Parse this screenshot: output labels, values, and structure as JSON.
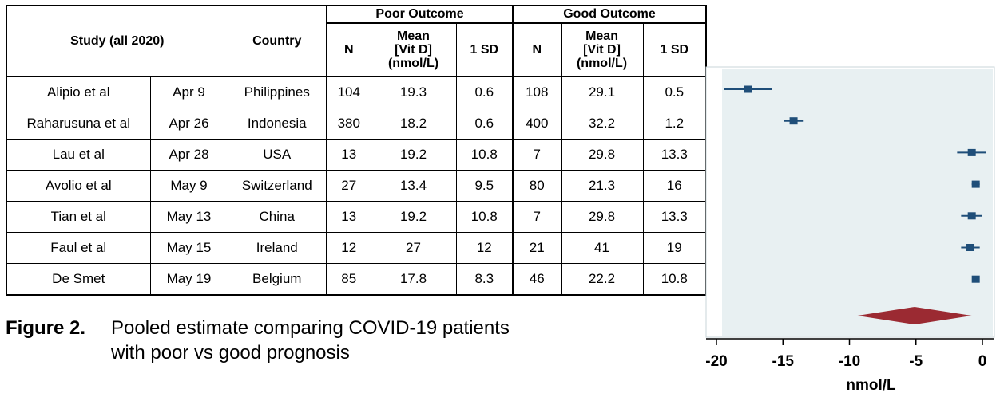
{
  "table": {
    "headers": {
      "study": "Study (all 2020)",
      "country": "Country",
      "poor_group": "Poor Outcome",
      "good_group": "Good Outcome",
      "n": "N",
      "mean_line1": "Mean",
      "mean_line2": "[Vit D]",
      "mean_line3": "(nmol/L)",
      "sd": "1 SD"
    },
    "rows": [
      {
        "study": "Alipio et al",
        "date": "Apr 9",
        "country": "Philippines",
        "poor_n": "104",
        "poor_mean": "19.3",
        "poor_sd": "0.6",
        "good_n": "108",
        "good_mean": "29.1",
        "good_sd": "0.5"
      },
      {
        "study": "Raharusuna et al",
        "date": "Apr 26",
        "country": "Indonesia",
        "poor_n": "380",
        "poor_mean": "18.2",
        "poor_sd": "0.6",
        "good_n": "400",
        "good_mean": "32.2",
        "good_sd": "1.2"
      },
      {
        "study": "Lau et al",
        "date": "Apr 28",
        "country": "USA",
        "poor_n": "13",
        "poor_mean": "19.2",
        "poor_sd": "10.8",
        "good_n": "7",
        "good_mean": "29.8",
        "good_sd": "13.3"
      },
      {
        "study": "Avolio et al",
        "date": "May 9",
        "country": "Switzerland",
        "poor_n": "27",
        "poor_mean": "13.4",
        "poor_sd": "9.5",
        "good_n": "80",
        "good_mean": "21.3",
        "good_sd": "16"
      },
      {
        "study": "Tian et al",
        "date": "May 13",
        "country": "China",
        "poor_n": "13",
        "poor_mean": "19.2",
        "poor_sd": "10.8",
        "good_n": "7",
        "good_mean": "29.8",
        "good_sd": "13.3"
      },
      {
        "study": "Faul et al",
        "date": "May 15",
        "country": "Ireland",
        "poor_n": "12",
        "poor_mean": "27",
        "poor_sd": "12",
        "good_n": "21",
        "good_mean": "41",
        "good_sd": "19"
      },
      {
        "study": "De Smet",
        "date": "May 19",
        "country": "Belgium",
        "poor_n": "85",
        "poor_mean": "17.8",
        "poor_sd": "8.3",
        "good_n": "46",
        "good_mean": "22.2",
        "good_sd": "10.8"
      }
    ]
  },
  "caption": {
    "label": "Figure 2.",
    "line1": "Pooled estimate comparing COVID-19 patients",
    "line2": "with poor vs good prognosis"
  },
  "chart_data": {
    "type": "scatter",
    "subtype": "forest-plot",
    "xlabel": "nmol/L",
    "xlim": [
      -20,
      0
    ],
    "xticks": [
      "-20",
      "-15",
      "-10",
      "-5",
      "0"
    ],
    "xtick_values": [
      -20,
      -15,
      -10,
      -5,
      0
    ],
    "studies": [
      {
        "estimate": -17.6,
        "ci": [
          -19.4,
          -15.8
        ]
      },
      {
        "estimate": -14.2,
        "ci": [
          -14.9,
          -13.5
        ]
      },
      {
        "estimate": -0.8,
        "ci": [
          -1.9,
          0.3
        ]
      },
      {
        "estimate": -0.5,
        "ci": [
          -0.8,
          -0.2
        ]
      },
      {
        "estimate": -0.8,
        "ci": [
          -1.6,
          0.0
        ]
      },
      {
        "estimate": -0.9,
        "ci": [
          -1.6,
          -0.2
        ]
      },
      {
        "estimate": -0.5,
        "ci": [
          -0.7,
          -0.3
        ]
      }
    ],
    "pooled": {
      "estimate": -5.1,
      "ci": [
        -9.4,
        -0.8
      ]
    },
    "colors": {
      "panel": "#e8f0f2",
      "marker": "#1f4e79",
      "pooled": "#9b2a32"
    }
  }
}
